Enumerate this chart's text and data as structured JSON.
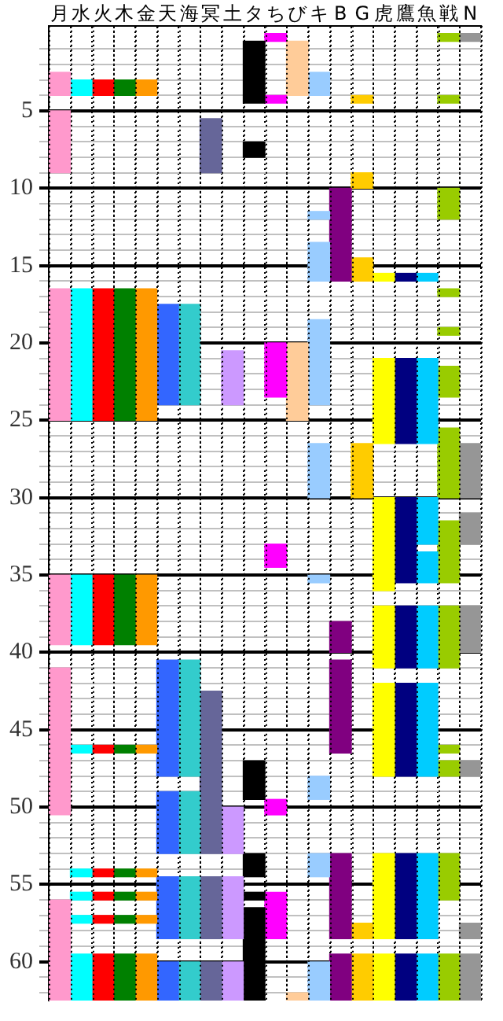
{
  "chart_data": {
    "type": "bar",
    "categories": [
      "月",
      "水",
      "火",
      "木",
      "金",
      "天",
      "海",
      "冥",
      "土",
      "タ",
      "ち",
      "び",
      "キ",
      "B",
      "G",
      "虎",
      "鷹",
      "魚",
      "戦",
      "N"
    ],
    "ylim": [
      62.5,
      -0.5
    ],
    "yticks": [
      {
        "value": 1,
        "label": null
      },
      {
        "value": 2,
        "label": null
      },
      {
        "value": 3,
        "label": null
      },
      {
        "value": 4,
        "label": null
      },
      5,
      {
        "value": 6,
        "label": null
      },
      {
        "value": 7,
        "label": null
      },
      {
        "value": 8,
        "label": null
      },
      {
        "value": 9,
        "label": null
      },
      10,
      {
        "value": 11,
        "label": null
      },
      {
        "value": 12,
        "label": null
      },
      {
        "value": 13,
        "label": null
      },
      {
        "value": 14,
        "label": null
      },
      15,
      {
        "value": 16,
        "label": null
      },
      {
        "value": 17,
        "label": null
      },
      {
        "value": 18,
        "label": null
      },
      {
        "value": 19,
        "label": null
      },
      20,
      {
        "value": 21,
        "label": null
      },
      {
        "value": 22,
        "label": null
      },
      {
        "value": 23,
        "label": null
      },
      {
        "value": 24,
        "label": null
      },
      25,
      {
        "value": 26,
        "label": null
      },
      {
        "value": 27,
        "label": null
      },
      {
        "value": 28,
        "label": null
      },
      {
        "value": 29,
        "label": null
      },
      30,
      {
        "value": 31,
        "label": null
      },
      {
        "value": 32,
        "label": null
      },
      {
        "value": 33,
        "label": null
      },
      {
        "value": 34,
        "label": null
      },
      35,
      {
        "value": 36,
        "label": null
      },
      {
        "value": 37,
        "label": null
      },
      {
        "value": 38,
        "label": null
      },
      {
        "value": 39,
        "label": null
      },
      40,
      {
        "value": 41,
        "label": null
      },
      {
        "value": 42,
        "label": null
      },
      {
        "value": 43,
        "label": null
      },
      {
        "value": 44,
        "label": null
      },
      45,
      {
        "value": 46,
        "label": null
      },
      {
        "value": 47,
        "label": null
      },
      {
        "value": 48,
        "label": null
      },
      {
        "value": 49,
        "label": null
      },
      50,
      {
        "value": 51,
        "label": null
      },
      {
        "value": 52,
        "label": null
      },
      {
        "value": 53,
        "label": null
      },
      {
        "value": 54,
        "label": null
      },
      55,
      {
        "value": 56,
        "label": null
      },
      {
        "value": 57,
        "label": null
      },
      {
        "value": 58,
        "label": null
      },
      {
        "value": 59,
        "label": null
      },
      60,
      {
        "value": 61,
        "label": null
      },
      {
        "value": 62,
        "label": null
      }
    ],
    "grid": true,
    "legend": false,
    "series": [
      {
        "color": "#ff99cc",
        "x": [
          "月",
          "月",
          "月",
          "月",
          "月",
          "月"
        ],
        "base": [
          2.5,
          5,
          16.5,
          35,
          41,
          56
        ],
        "values": [
          1.5,
          4,
          8.5,
          4.5,
          9.5,
          6.5
        ]
      },
      {
        "color": "#00ffff",
        "x": [
          "水",
          "水",
          "水",
          "水",
          "水",
          "水",
          "水",
          "水"
        ],
        "base": [
          3,
          16.5,
          35,
          46,
          54,
          55.5,
          57,
          59.5
        ],
        "values": [
          1,
          8.5,
          4.5,
          0.5,
          0.5,
          0.5,
          0.5,
          3
        ]
      },
      {
        "color": "#ff0000",
        "x": [
          "火",
          "火",
          "火",
          "火",
          "火",
          "火",
          "火",
          "火"
        ],
        "base": [
          3,
          16.5,
          35,
          46,
          54,
          55.5,
          57,
          59.5
        ],
        "values": [
          1,
          8.5,
          4.5,
          0.5,
          0.5,
          0.5,
          0.5,
          3
        ]
      },
      {
        "color": "#008000",
        "x": [
          "木",
          "木",
          "木",
          "木",
          "木",
          "木",
          "木",
          "木"
        ],
        "base": [
          3,
          16.5,
          35,
          46,
          54,
          55.5,
          57,
          59.5
        ],
        "values": [
          1,
          8.5,
          4.5,
          0.5,
          0.5,
          0.5,
          0.5,
          3
        ]
      },
      {
        "color": "#ff9900",
        "x": [
          "金",
          "金",
          "金",
          "金",
          "金",
          "金",
          "金",
          "金"
        ],
        "base": [
          3,
          16.5,
          35,
          46,
          54,
          55.5,
          57,
          59.5
        ],
        "values": [
          1,
          8.5,
          4.5,
          0.5,
          0.5,
          0.5,
          0.5,
          3
        ]
      },
      {
        "color": "#3366ff",
        "x": [
          "天",
          "天",
          "天",
          "天",
          "天"
        ],
        "base": [
          17.5,
          40.5,
          49,
          54.5,
          60
        ],
        "values": [
          6.5,
          7.5,
          4,
          4,
          2.5
        ]
      },
      {
        "color": "#33cccc",
        "x": [
          "海",
          "海",
          "海",
          "海",
          "海"
        ],
        "base": [
          17.5,
          40.5,
          49,
          54.5,
          60
        ],
        "values": [
          6.5,
          7.5,
          4,
          4,
          2.5
        ]
      },
      {
        "color": "#666699",
        "x": [
          "冥",
          "冥",
          "冥",
          "冥"
        ],
        "base": [
          5.5,
          42.5,
          54.5,
          60
        ],
        "values": [
          3.5,
          10.5,
          4,
          2.5
        ]
      },
      {
        "color": "#cc99ff",
        "x": [
          "土",
          "土",
          "土",
          "土"
        ],
        "base": [
          20.5,
          50,
          54.5,
          60
        ],
        "values": [
          3.5,
          3,
          4,
          2.5
        ]
      },
      {
        "color": "#000000",
        "x": [
          "タ",
          "タ",
          "タ",
          "タ",
          "タ",
          "タ"
        ],
        "base": [
          0.5,
          7,
          47,
          53,
          55.5,
          56.5
        ],
        "values": [
          4,
          1,
          2.5,
          1.5,
          0.5,
          6
        ]
      },
      {
        "color": "#ff00ff",
        "x": [
          "ち",
          "ち",
          "ち",
          "ち",
          "ち",
          "ち"
        ],
        "base": [
          0,
          4,
          20,
          33,
          49.5,
          55.5
        ],
        "values": [
          0.5,
          0.5,
          3.5,
          1.5,
          1,
          3
        ]
      },
      {
        "color": "#ffcc99",
        "x": [
          "び",
          "び",
          "び"
        ],
        "base": [
          0.5,
          20,
          62
        ],
        "values": [
          3.5,
          5,
          0.5
        ]
      },
      {
        "color": "#99ccff",
        "x": [
          "キ",
          "キ",
          "キ",
          "キ",
          "キ",
          "キ",
          "キ",
          "キ",
          "キ"
        ],
        "base": [
          2.5,
          11.5,
          13.5,
          18.5,
          26.5,
          35,
          48,
          53,
          60
        ],
        "values": [
          1.5,
          0.5,
          2.5,
          5.5,
          3.5,
          0.5,
          1.5,
          1.5,
          2.5
        ]
      },
      {
        "color": "#800080",
        "x": [
          "B",
          "B",
          "B",
          "B",
          "B"
        ],
        "base": [
          10,
          38,
          40.5,
          53,
          59.5
        ],
        "values": [
          6,
          2,
          6,
          5.5,
          3
        ]
      },
      {
        "color": "#ffcc00",
        "x": [
          "G",
          "G",
          "G",
          "G",
          "G",
          "G"
        ],
        "base": [
          4,
          9,
          14.5,
          26.5,
          57.5,
          59.5
        ],
        "values": [
          0.5,
          1,
          1.5,
          3.5,
          1,
          3
        ]
      },
      {
        "color": "#ffff00",
        "x": [
          "虎",
          "虎",
          "虎",
          "虎",
          "虎",
          "虎",
          "虎"
        ],
        "base": [
          15.5,
          21,
          30,
          37,
          42,
          53,
          59.5
        ],
        "values": [
          0.5,
          5.5,
          6,
          4,
          6,
          5.5,
          3
        ]
      },
      {
        "color": "#000080",
        "x": [
          "鷹",
          "鷹",
          "鷹",
          "鷹",
          "鷹",
          "鷹",
          "鷹"
        ],
        "base": [
          15.5,
          21,
          30,
          37,
          42,
          53,
          59.5
        ],
        "values": [
          0.5,
          5.5,
          5.5,
          4,
          6,
          5.5,
          3
        ]
      },
      {
        "color": "#00ccff",
        "x": [
          "魚",
          "魚",
          "魚",
          "魚",
          "魚",
          "魚",
          "魚",
          "魚"
        ],
        "base": [
          15.5,
          21,
          30,
          33.5,
          37,
          42,
          53,
          59.5
        ],
        "values": [
          0.5,
          5.5,
          3,
          2,
          4,
          6,
          5.5,
          3
        ]
      },
      {
        "color": "#99cc00",
        "x": [
          "戦",
          "戦",
          "戦",
          "戦",
          "戦",
          "戦",
          "戦",
          "戦",
          "戦",
          "戦",
          "戦",
          "戦",
          "戦"
        ],
        "base": [
          0,
          4,
          10,
          16.5,
          19,
          21.5,
          25.5,
          31.5,
          37,
          46,
          47,
          53,
          59.5
        ],
        "values": [
          0.5,
          0.5,
          2,
          0.5,
          0.5,
          2,
          4.5,
          4,
          4,
          0.5,
          1,
          3,
          3
        ]
      },
      {
        "color": "#969696",
        "x": [
          "N",
          "N",
          "N",
          "N",
          "N",
          "N",
          "N"
        ],
        "base": [
          0,
          26.5,
          31,
          37,
          47,
          57.5,
          59.5
        ],
        "values": [
          0.5,
          3.5,
          2,
          3,
          1,
          1,
          3
        ]
      }
    ]
  }
}
